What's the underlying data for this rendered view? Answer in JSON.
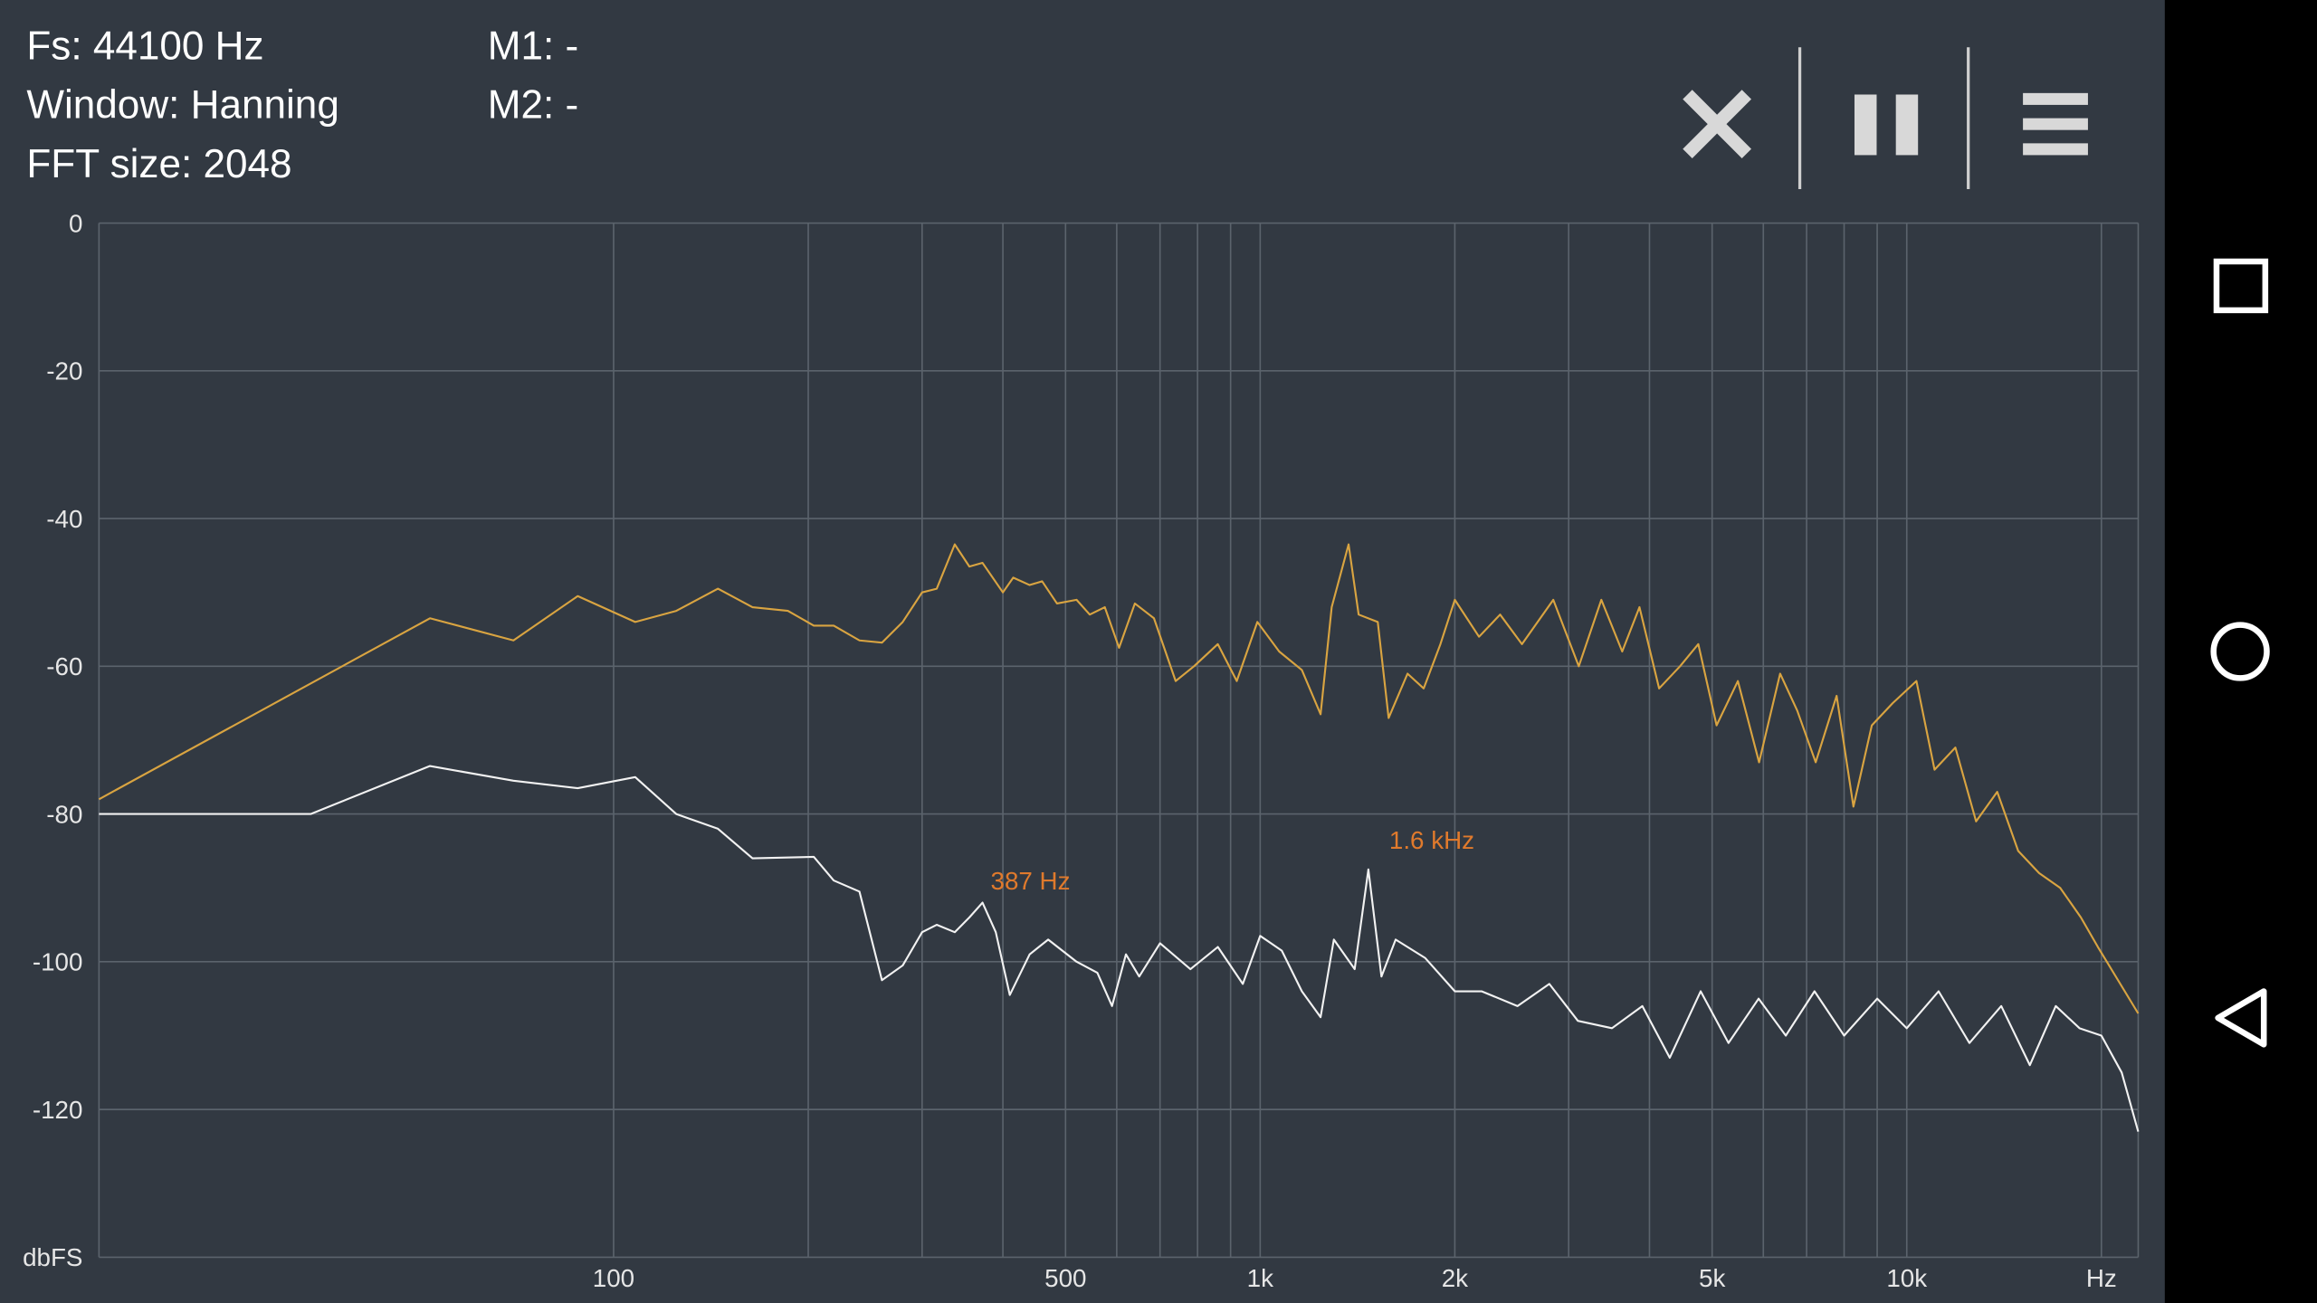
{
  "header": {
    "fs": "Fs: 44100 Hz",
    "window": "Window: Hanning",
    "fft": "FFT size: 2048",
    "m1": "M1: -",
    "m2": "M2: -"
  },
  "chart_data": {
    "type": "line",
    "xscale": "log",
    "grid": true,
    "xlim": [
      16,
      22800
    ],
    "ylim": [
      -140,
      0
    ],
    "yticks": [
      0,
      -20,
      -40,
      -60,
      -80,
      -100,
      -120,
      {
        "value": -140,
        "label": "dbFS"
      }
    ],
    "xticks": [
      100,
      500,
      {
        "value": 1000,
        "label": "1k"
      },
      {
        "value": 2000,
        "label": "2k"
      },
      {
        "value": 5000,
        "label": "5k"
      },
      {
        "value": 10000,
        "label": "10k"
      },
      {
        "value": 20000,
        "label": "Hz"
      }
    ],
    "xgrid": [
      200,
      300,
      400,
      600,
      700,
      800,
      900,
      3000,
      4000,
      6000,
      7000,
      8000,
      9000
    ],
    "series": [
      {
        "color": "#d9a441",
        "x": [
          16,
          52,
          70,
          88,
          108,
          125,
          145,
          164,
          186,
          204,
          219,
          240,
          260,
          280,
          300,
          316,
          337,
          355,
          372,
          400,
          415,
          440,
          460,
          485,
          520,
          545,
          575,
          605,
          640,
          685,
          740,
          790,
          860,
          920,
          990,
          1070,
          1160,
          1240,
          1290,
          1370,
          1420,
          1520,
          1580,
          1690,
          1790,
          1900,
          2000,
          2180,
          2350,
          2540,
          2840,
          3110,
          3370,
          3630,
          3860,
          4140,
          4460,
          4760,
          5080,
          5480,
          5910,
          6370,
          6770,
          7230,
          7790,
          8270,
          8830,
          9510,
          10350,
          11040,
          11890,
          12800,
          13800,
          14870,
          16020,
          17270,
          18590,
          19750,
          22800
        ],
        "values": [
          -78,
          -53.5,
          -56.5,
          -50.5,
          -54,
          -52.5,
          -49.5,
          -52,
          -52.5,
          -54.5,
          -54.5,
          -56.5,
          -56.8,
          -54,
          -50,
          -49.5,
          -43.5,
          -46.5,
          -46,
          -50,
          -48,
          -49,
          -48.5,
          -51.5,
          -51,
          -53,
          -52,
          -57.5,
          -51.5,
          -53.5,
          -62,
          -60,
          -57,
          -62,
          -54,
          -58,
          -60.5,
          -66.5,
          -52,
          -43.5,
          -53,
          -54,
          -67,
          -61,
          -63,
          -57,
          -51,
          -56,
          -53,
          -57,
          -51,
          -60,
          -51,
          -58,
          -52,
          -63,
          -60,
          -57,
          -68,
          -62,
          -73,
          -61,
          -66,
          -73,
          -64,
          -79,
          -68,
          -65,
          -62,
          -74,
          -71,
          -81,
          -77,
          -85,
          -88,
          -90,
          -94,
          -98,
          -107
        ]
      },
      {
        "color": "#f2f2f2",
        "x": [
          16,
          34,
          52,
          70,
          88,
          108,
          125,
          145,
          164,
          204,
          219,
          240,
          260,
          280,
          300,
          316,
          337,
          355,
          372,
          390,
          410,
          440,
          470,
          520,
          560,
          590,
          620,
          650,
          700,
          780,
          860,
          940,
          1000,
          1080,
          1160,
          1240,
          1300,
          1400,
          1470,
          1540,
          1620,
          1800,
          2000,
          2200,
          2500,
          2800,
          3100,
          3500,
          3900,
          4300,
          4800,
          5300,
          5900,
          6500,
          7200,
          8000,
          9000,
          10000,
          11200,
          12500,
          14000,
          15500,
          17000,
          18500,
          20000,
          21500,
          22800
        ],
        "values": [
          -80,
          -80,
          -73.5,
          -75.5,
          -76.5,
          -75,
          -80,
          -82,
          -86,
          -85.8,
          -89,
          -90.5,
          -102.5,
          -100.5,
          -96,
          -95,
          -96,
          -94,
          -92,
          -96,
          -104.5,
          -99,
          -97,
          -100,
          -101.5,
          -106,
          -99,
          -102,
          -97.5,
          -101,
          -98,
          -103,
          -96.5,
          -98.5,
          -104,
          -107.5,
          -97,
          -101,
          -87.5,
          -102,
          -97,
          -99.5,
          -104,
          -104,
          -106,
          -103,
          -108,
          -109,
          -106,
          -113,
          -104,
          -111,
          -105,
          -110,
          -104,
          -110,
          -105,
          -109,
          -104,
          -111,
          -106,
          -114,
          -106,
          -109,
          -110,
          -115,
          -123
        ]
      }
    ],
    "annotations": [
      {
        "text": "387 Hz",
        "x": 387,
        "y": -93
      },
      {
        "text": "1.6  kHz",
        "x": 1600,
        "y": -87.5
      }
    ]
  }
}
